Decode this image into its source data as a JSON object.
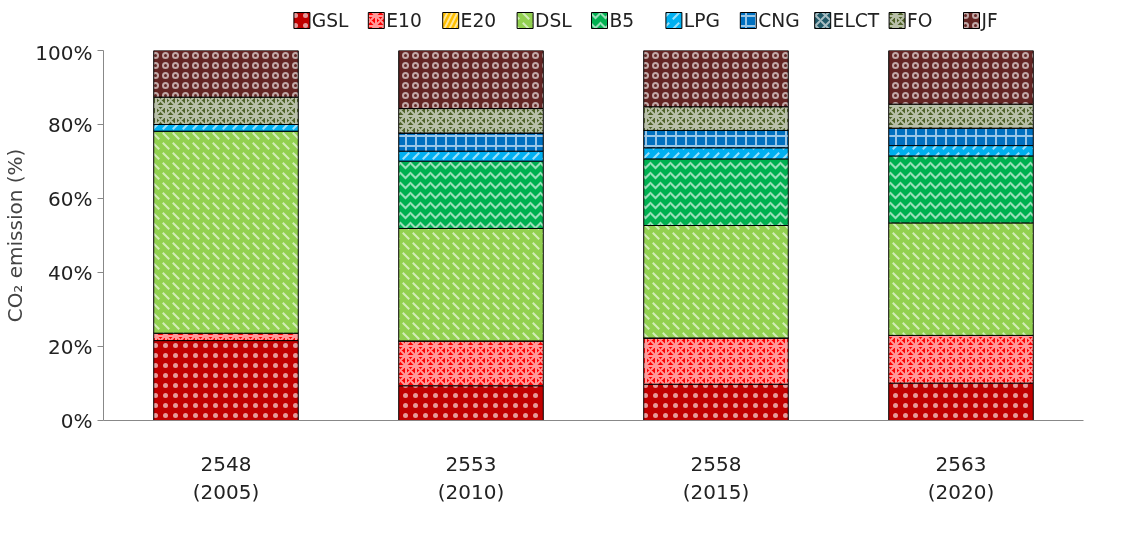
{
  "chart_data": {
    "type": "bar",
    "stacked": true,
    "ylabel": "CO₂ emission (%)",
    "categories": [
      "2548\n(2005)",
      "2553\n(2010)",
      "2558\n(2015)",
      "2563\n(2020)"
    ],
    "series": [
      {
        "name": "GSL",
        "color": "#c00000",
        "values": [
          21.6,
          9.4,
          9.8,
          10.1
        ]
      },
      {
        "name": "E10",
        "color": "#ff0000",
        "values": [
          2.0,
          12.1,
          12.5,
          12.9
        ]
      },
      {
        "name": "E20",
        "color": "#ffc000",
        "values": [
          0,
          0,
          0,
          0
        ]
      },
      {
        "name": "DSL",
        "color": "#92d050",
        "values": [
          54.6,
          30.4,
          30.4,
          30.4
        ]
      },
      {
        "name": "B5",
        "color": "#00b050",
        "values": [
          0,
          18.2,
          18.0,
          18.1
        ]
      },
      {
        "name": "LPG",
        "color": "#00b0f0",
        "values": [
          1.8,
          2.7,
          3.0,
          2.8
        ]
      },
      {
        "name": "CNG",
        "color": "#0070c0",
        "values": [
          0,
          4.9,
          4.7,
          4.7
        ]
      },
      {
        "name": "ELCT",
        "color": "#215968",
        "values": [
          0,
          0,
          0,
          0
        ]
      },
      {
        "name": "FO",
        "color": "#4f6228",
        "values": [
          7.4,
          6.6,
          6.4,
          6.5
        ]
      },
      {
        "name": "JF",
        "color": "#632523",
        "values": [
          12.6,
          15.7,
          15.2,
          14.5
        ]
      }
    ],
    "ylim": [
      0,
      100
    ],
    "yticks": [
      {
        "value": 0,
        "label": "0%"
      },
      {
        "value": 20,
        "label": "20%"
      },
      {
        "value": 40,
        "label": "40%"
      },
      {
        "value": 60,
        "label": "60%"
      },
      {
        "value": 80,
        "label": "80%"
      },
      {
        "value": 100,
        "label": "100%"
      }
    ],
    "grid": false,
    "legend": "top"
  }
}
